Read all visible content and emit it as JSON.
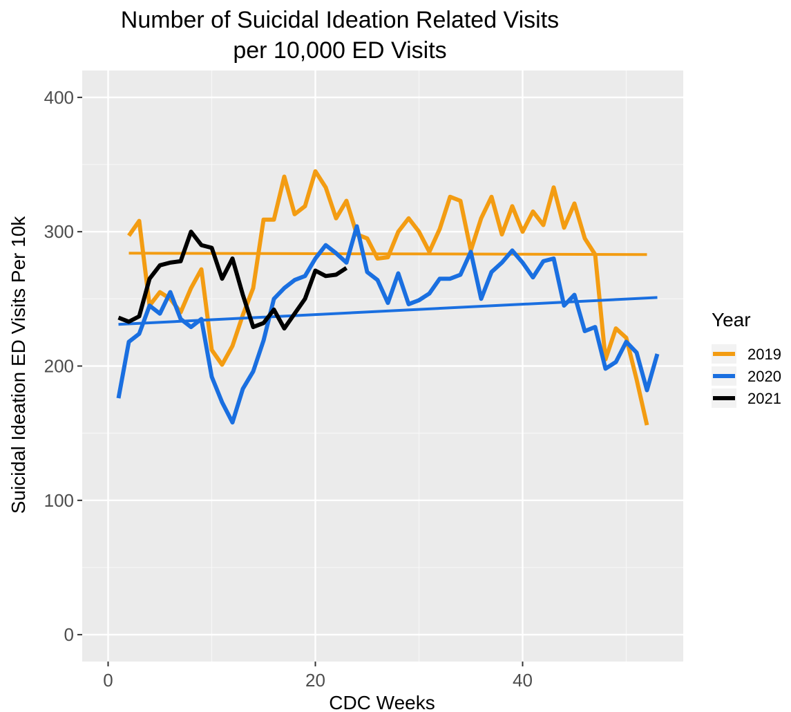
{
  "chart_data": {
    "type": "line",
    "title": [
      "Number of Suicidal Ideation Related Visits",
      "per 10,000 ED Visits"
    ],
    "xlabel": "CDC Weeks",
    "ylabel": "Suicidal Ideation ED Visits Per 10k",
    "xlim": [
      -2.5,
      55.5
    ],
    "ylim": [
      -20,
      420
    ],
    "x_ticks": [
      0,
      20,
      40
    ],
    "x_tick_labels": [
      "0",
      "20",
      "40"
    ],
    "y_ticks": [
      0,
      100,
      200,
      300,
      400
    ],
    "y_tick_labels": [
      "0",
      "100",
      "200",
      "300",
      "400"
    ],
    "grid": true,
    "legend": {
      "title": "Year",
      "position": "right"
    },
    "series": [
      {
        "name": "2019",
        "color": "#F39C12",
        "x": [
          2,
          3,
          4,
          5,
          6,
          7,
          8,
          9,
          10,
          11,
          12,
          13,
          14,
          15,
          16,
          17,
          18,
          19,
          20,
          21,
          22,
          23,
          24,
          25,
          26,
          27,
          28,
          29,
          30,
          31,
          32,
          33,
          34,
          35,
          36,
          37,
          38,
          39,
          40,
          41,
          42,
          43,
          44,
          45,
          46,
          47,
          48,
          49,
          50,
          51,
          52
        ],
        "y": [
          297,
          308,
          245,
          255,
          250,
          240,
          258,
          272,
          212,
          201,
          215,
          238,
          258,
          309,
          309,
          341,
          313,
          319,
          345,
          333,
          310,
          323,
          298,
          295,
          280,
          281,
          300,
          310,
          300,
          285,
          302,
          326,
          323,
          286,
          310,
          326,
          298,
          319,
          300,
          315,
          305,
          333,
          303,
          321,
          295,
          283,
          205,
          228,
          221,
          190,
          156
        ],
        "trend": {
          "x": [
            2,
            52
          ],
          "y": [
            284,
            283
          ]
        }
      },
      {
        "name": "2020",
        "color": "#1A6FE0",
        "x": [
          1,
          2,
          3,
          4,
          5,
          6,
          7,
          8,
          9,
          10,
          11,
          12,
          13,
          14,
          15,
          16,
          17,
          18,
          19,
          20,
          21,
          22,
          23,
          24,
          25,
          26,
          27,
          28,
          29,
          30,
          31,
          32,
          33,
          34,
          35,
          36,
          37,
          38,
          39,
          40,
          41,
          42,
          43,
          44,
          45,
          46,
          47,
          48,
          49,
          50,
          51,
          52,
          53
        ],
        "y": [
          176,
          218,
          224,
          245,
          239,
          255,
          235,
          229,
          235,
          192,
          173,
          158,
          183,
          196,
          219,
          250,
          258,
          264,
          267,
          280,
          290,
          284,
          277,
          304,
          270,
          264,
          247,
          269,
          246,
          249,
          254,
          265,
          265,
          268,
          285,
          250,
          270,
          277,
          286,
          277,
          266,
          278,
          280,
          245,
          253,
          226,
          229,
          198,
          203,
          218,
          210,
          182,
          209
        ],
        "trend": {
          "x": [
            1,
            53
          ],
          "y": [
            231,
            251
          ]
        }
      },
      {
        "name": "2021",
        "color": "#000000",
        "x": [
          1,
          2,
          3,
          4,
          5,
          6,
          7,
          8,
          9,
          10,
          11,
          12,
          13,
          14,
          15,
          16,
          17,
          18,
          19,
          20,
          21,
          22,
          23
        ],
        "y": [
          236,
          233,
          237,
          265,
          275,
          277,
          278,
          300,
          290,
          288,
          265,
          280,
          253,
          229,
          232,
          242,
          228,
          239,
          250,
          271,
          267,
          268,
          273
        ]
      }
    ]
  }
}
